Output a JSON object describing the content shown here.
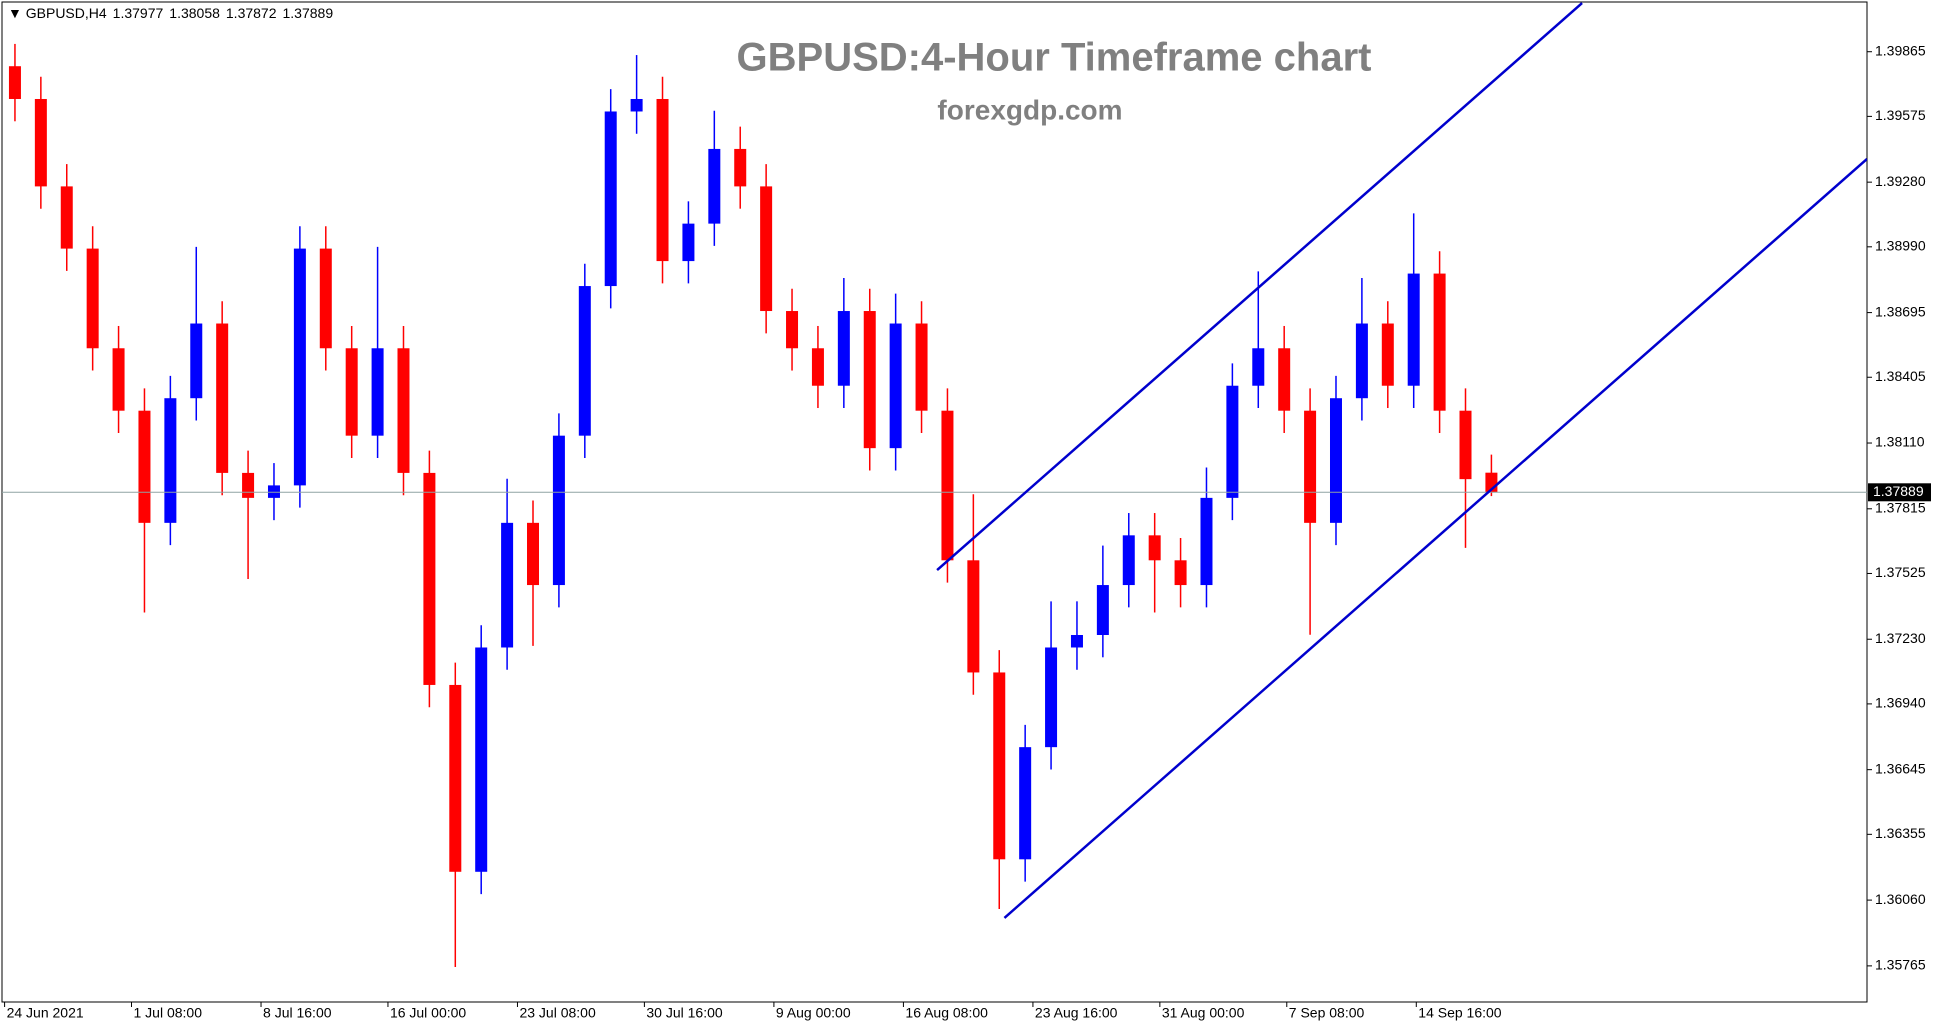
{
  "chart_data": {
    "type": "candlestick",
    "title": "GBPUSD:4-Hour Timeframe chart",
    "subtitle": "forexgdp.com",
    "symbol": "GBPUSD,H4",
    "header_values": [
      1.37977,
      1.38058,
      1.37872,
      1.37889
    ],
    "open": [
      1.398,
      1.39653,
      1.39261,
      1.38982,
      1.38535,
      1.38255,
      1.37752,
      1.38311,
      1.38646,
      1.37976,
      1.37864,
      1.3792,
      1.38982,
      1.38535,
      1.38143,
      1.38535,
      1.37976,
      1.37025,
      1.36187,
      1.37193,
      1.37752,
      1.37473,
      1.38143,
      1.38814,
      1.39597,
      1.39653,
      1.38926,
      1.39094,
      1.39429,
      1.39261,
      1.38702,
      1.38535,
      1.38367,
      1.38702,
      1.38087,
      1.38646,
      1.38255,
      1.37584,
      1.37081,
      1.36243,
      1.36746,
      1.37193,
      1.37249,
      1.37473,
      1.37696,
      1.37584,
      1.37473,
      1.37864,
      1.38367,
      1.38535,
      1.38255,
      1.37752,
      1.38311,
      1.38646,
      1.38367,
      1.3887,
      1.38255,
      1.37977
    ],
    "high": [
      1.399,
      1.39753,
      1.39361,
      1.39082,
      1.38635,
      1.38355,
      1.38411,
      1.3899,
      1.38746,
      1.38076,
      1.3802,
      1.39082,
      1.39082,
      1.38635,
      1.3899,
      1.38635,
      1.38076,
      1.37125,
      1.37293,
      1.3795,
      1.37852,
      1.38243,
      1.38914,
      1.39697,
      1.3985,
      1.39753,
      1.39194,
      1.396,
      1.39529,
      1.39361,
      1.38802,
      1.38635,
      1.3885,
      1.38802,
      1.3878,
      1.38746,
      1.38355,
      1.3788,
      1.37181,
      1.36846,
      1.374,
      1.374,
      1.3765,
      1.37796,
      1.37796,
      1.37684,
      1.38,
      1.38467,
      1.3888,
      1.38635,
      1.38355,
      1.38411,
      1.3885,
      1.38746,
      1.3914,
      1.3897,
      1.38355,
      1.38058
    ],
    "low": [
      1.39553,
      1.39161,
      1.38882,
      1.38435,
      1.38155,
      1.3735,
      1.37652,
      1.38211,
      1.37876,
      1.375,
      1.37764,
      1.3782,
      1.38435,
      1.38043,
      1.38043,
      1.37876,
      1.36925,
      1.3576,
      1.36087,
      1.37093,
      1.372,
      1.37373,
      1.38043,
      1.38714,
      1.39497,
      1.38826,
      1.38826,
      1.38994,
      1.39161,
      1.38602,
      1.38435,
      1.38267,
      1.38267,
      1.37987,
      1.37987,
      1.38155,
      1.37484,
      1.36981,
      1.3602,
      1.36143,
      1.36646,
      1.37093,
      1.37149,
      1.37373,
      1.3735,
      1.37373,
      1.37373,
      1.37764,
      1.38267,
      1.38155,
      1.3725,
      1.37652,
      1.38211,
      1.38267,
      1.38267,
      1.38155,
      1.3764,
      1.37872
    ],
    "close": [
      1.39653,
      1.39261,
      1.38982,
      1.38535,
      1.38255,
      1.37752,
      1.38311,
      1.38646,
      1.37976,
      1.37864,
      1.3792,
      1.38982,
      1.38535,
      1.38143,
      1.38535,
      1.37976,
      1.37025,
      1.36187,
      1.37193,
      1.37752,
      1.37473,
      1.38143,
      1.38814,
      1.39597,
      1.39653,
      1.38926,
      1.39094,
      1.39429,
      1.39261,
      1.38702,
      1.38535,
      1.38367,
      1.38702,
      1.38087,
      1.38646,
      1.38255,
      1.37584,
      1.37081,
      1.36243,
      1.36746,
      1.37193,
      1.37249,
      1.37473,
      1.37696,
      1.37584,
      1.37473,
      1.37864,
      1.38367,
      1.38535,
      1.38255,
      1.37752,
      1.38311,
      1.38646,
      1.38367,
      1.3887,
      1.38255,
      1.37948,
      1.37889
    ],
    "up_color": "#0000ff",
    "down_color": "#ff0000",
    "xlim": [
      -0.5,
      71.5
    ],
    "xticks": [
      {
        "value": -0.4,
        "label": "24 Jun 2021"
      },
      {
        "value": 4.5,
        "label": "1 Jul 08:00"
      },
      {
        "value": 9.5,
        "label": "8 Jul 16:00"
      },
      {
        "value": 14.4,
        "label": "16 Jul 00:00"
      },
      {
        "value": 19.4,
        "label": "23 Jul 08:00"
      },
      {
        "value": 24.3,
        "label": "30 Jul 16:00"
      },
      {
        "value": 29.3,
        "label": "9 Aug 00:00"
      },
      {
        "value": 34.3,
        "label": "16 Aug 08:00"
      },
      {
        "value": 39.3,
        "label": "23 Aug 16:00"
      },
      {
        "value": 44.2,
        "label": "31 Aug 00:00"
      },
      {
        "value": 49.1,
        "label": "7 Sep 08:00"
      },
      {
        "value": 54.1,
        "label": "14 Sep 16:00"
      }
    ],
    "ylim": [
      1.35603,
      1.40088
    ],
    "yticks": [
      1.39865,
      1.39575,
      {
        "value": 1.3928,
        "label": "1.39280"
      },
      {
        "value": 1.3899,
        "label": "1.38990"
      },
      1.38695,
      1.38405,
      {
        "value": 1.3811,
        "label": "1.38110"
      },
      1.37815,
      1.37525,
      {
        "value": 1.3723,
        "label": "1.37230"
      },
      {
        "value": 1.3694,
        "label": "1.36940"
      },
      1.36645,
      1.36355,
      {
        "value": 1.3606,
        "label": "1.36060"
      },
      1.35765
    ],
    "current_price": 1.37889,
    "trendline_color": "#0000cd",
    "trendlines": [
      {
        "x": [
          35.6,
          60.5
        ],
        "y": [
          1.3754,
          1.40083
        ]
      },
      {
        "x": [
          38.2,
          71.5
        ],
        "y": [
          1.3598,
          1.39384
        ]
      }
    ]
  }
}
